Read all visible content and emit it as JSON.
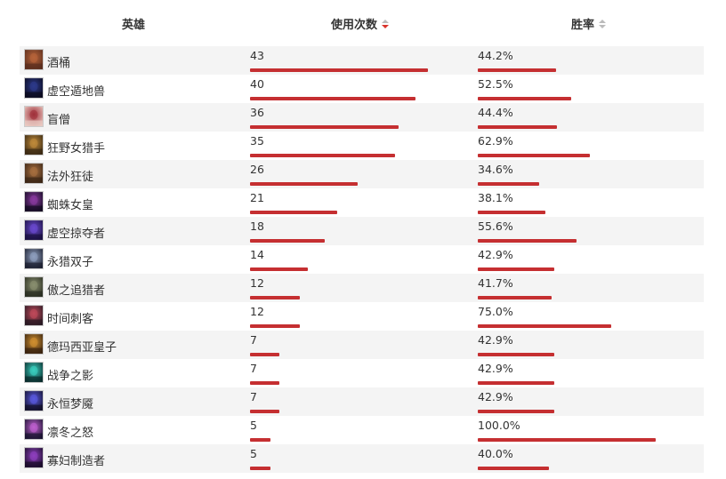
{
  "header": {
    "hero_label": "英雄",
    "uses_label": "使用次数",
    "winrate_label": "胜率"
  },
  "colors": {
    "bar": "#c52f31",
    "sort_active": "#d9332b",
    "row_alt": "#f4f4f4"
  },
  "heroes": [
    {
      "name": "酒桶",
      "uses": "43",
      "uses_value": 43,
      "winrate": "44.2%",
      "winrate_value": 44.2,
      "icon": "gragas-portrait"
    },
    {
      "name": "虚空遁地兽",
      "uses": "40",
      "uses_value": 40,
      "winrate": "52.5%",
      "winrate_value": 52.5,
      "icon": "reksai-portrait"
    },
    {
      "name": "盲僧",
      "uses": "36",
      "uses_value": 36,
      "winrate": "44.4%",
      "winrate_value": 44.4,
      "icon": "leesin-portrait"
    },
    {
      "name": "狂野女猎手",
      "uses": "35",
      "uses_value": 35,
      "winrate": "62.9%",
      "winrate_value": 62.9,
      "icon": "nidalee-portrait"
    },
    {
      "name": "法外狂徒",
      "uses": "26",
      "uses_value": 26,
      "winrate": "34.6%",
      "winrate_value": 34.6,
      "icon": "graves-portrait"
    },
    {
      "name": "蜘蛛女皇",
      "uses": "21",
      "uses_value": 21,
      "winrate": "38.1%",
      "winrate_value": 38.1,
      "icon": "elise-portrait"
    },
    {
      "name": "虚空掠夺者",
      "uses": "18",
      "uses_value": 18,
      "winrate": "55.6%",
      "winrate_value": 55.6,
      "icon": "khazix-portrait"
    },
    {
      "name": "永猎双子",
      "uses": "14",
      "uses_value": 14,
      "winrate": "42.9%",
      "winrate_value": 42.9,
      "icon": "kindred-portrait"
    },
    {
      "name": "傲之追猎者",
      "uses": "12",
      "uses_value": 12,
      "winrate": "41.7%",
      "winrate_value": 41.7,
      "icon": "rengar-portrait"
    },
    {
      "name": "时间刺客",
      "uses": "12",
      "uses_value": 12,
      "winrate": "75.0%",
      "winrate_value": 75.0,
      "icon": "ekko-portrait"
    },
    {
      "name": "德玛西亚皇子",
      "uses": "7",
      "uses_value": 7,
      "winrate": "42.9%",
      "winrate_value": 42.9,
      "icon": "jarvan-portrait"
    },
    {
      "name": "战争之影",
      "uses": "7",
      "uses_value": 7,
      "winrate": "42.9%",
      "winrate_value": 42.9,
      "icon": "hecarim-portrait"
    },
    {
      "name": "永恒梦魇",
      "uses": "7",
      "uses_value": 7,
      "winrate": "42.9%",
      "winrate_value": 42.9,
      "icon": "nocturne-portrait"
    },
    {
      "name": "凛冬之怒",
      "uses": "5",
      "uses_value": 5,
      "winrate": "100.0%",
      "winrate_value": 100.0,
      "icon": "sejuani-portrait"
    },
    {
      "name": "寡妇制造者",
      "uses": "5",
      "uses_value": 5,
      "winrate": "40.0%",
      "winrate_value": 40.0,
      "icon": "evelynn-portrait"
    }
  ]
}
